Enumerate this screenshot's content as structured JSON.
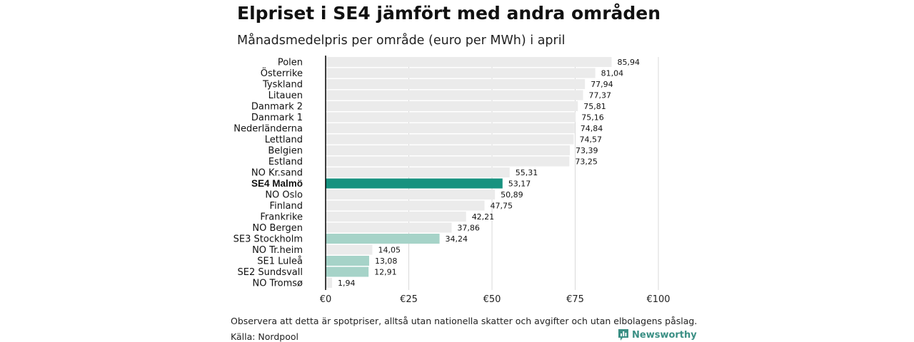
{
  "header": {
    "title": "Elpriset i SE4 jämfört med andra områden",
    "subtitle": "Månadsmedelpris per område (euro per MWh) i april"
  },
  "footer": {
    "note": "Observera att detta är spotpriser, alltså utan nationella skatter och avgifter och utan elbolagens påslag.",
    "source": "Källa: Nordpool",
    "brand": "Newsworthy"
  },
  "colors": {
    "highlight": "#17927f",
    "swedish": "#a6d3c8",
    "default": "#ebebeb",
    "grid": "#d9d9d9",
    "axis": "#000000"
  },
  "icons": {
    "brand": "newsworthy-logo-icon"
  },
  "chart_data": {
    "type": "bar",
    "orientation": "horizontal",
    "title": "Elpriset i SE4 jämfört med andra områden",
    "subtitle": "Månadsmedelpris per område (euro per MWh) i april",
    "xlim": [
      0,
      100
    ],
    "x_ticks": [
      0,
      25,
      50,
      75,
      100
    ],
    "x_tick_labels": [
      "€0",
      "€25",
      "€50",
      "€75",
      "€100"
    ],
    "grid": true,
    "categories": [
      "Polen",
      "Österrike",
      "Tyskland",
      "Litauen",
      "Danmark  2",
      "Danmark  1",
      "Nederländerna",
      "Lettland",
      "Belgien",
      "Estland",
      "NO Kr.sand",
      "SE4 Malmö",
      "NO Oslo",
      "Finland",
      "Frankrike",
      "NO Bergen",
      "SE3  Stockholm",
      "NO Tr.heim",
      "SE1  Luleå",
      "SE2  Sundsvall",
      "NO Tromsø"
    ],
    "values": [
      85.94,
      81.04,
      77.94,
      77.37,
      75.81,
      75.16,
      74.84,
      74.57,
      73.39,
      73.25,
      55.31,
      53.17,
      50.89,
      47.75,
      42.21,
      37.86,
      34.24,
      14.05,
      13.08,
      12.91,
      1.94
    ],
    "value_labels": [
      "85,94",
      "81,04",
      "77,94",
      "77,37",
      "75,81",
      "75,16",
      "74,84",
      "74,57",
      "73,39",
      "73,25",
      "55,31",
      "53,17",
      "50,89",
      "47,75",
      "42,21",
      "37,86",
      "34,24",
      "14,05",
      "13,08",
      "12,91",
      "1,94"
    ],
    "bar_color_roles": [
      "default",
      "default",
      "default",
      "default",
      "default",
      "default",
      "default",
      "default",
      "default",
      "default",
      "default",
      "highlight",
      "default",
      "default",
      "default",
      "default",
      "swedish",
      "default",
      "swedish",
      "swedish",
      "default"
    ],
    "bold_categories": [
      "SE4 Malmö"
    ]
  }
}
